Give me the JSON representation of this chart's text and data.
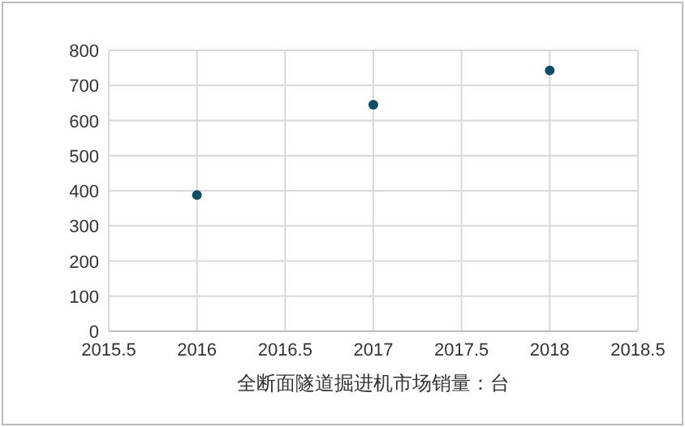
{
  "chart_data": {
    "type": "scatter",
    "xlabel": "全断面隧道掘进机市场销量：台",
    "x": [
      2016,
      2017,
      2018
    ],
    "series": [
      {
        "color": "#0f4d66",
        "values": [
          388,
          645,
          743
        ]
      }
    ],
    "xlim": [
      2015.5,
      2018.5
    ],
    "xticks": [
      2015.5,
      2016,
      2016.5,
      2017,
      2017.5,
      2018,
      2018.5
    ],
    "ylim": [
      0,
      800
    ],
    "yticks": [
      0,
      100,
      200,
      300,
      400,
      500,
      600,
      700,
      800
    ],
    "grid": true,
    "marker": "circle"
  }
}
